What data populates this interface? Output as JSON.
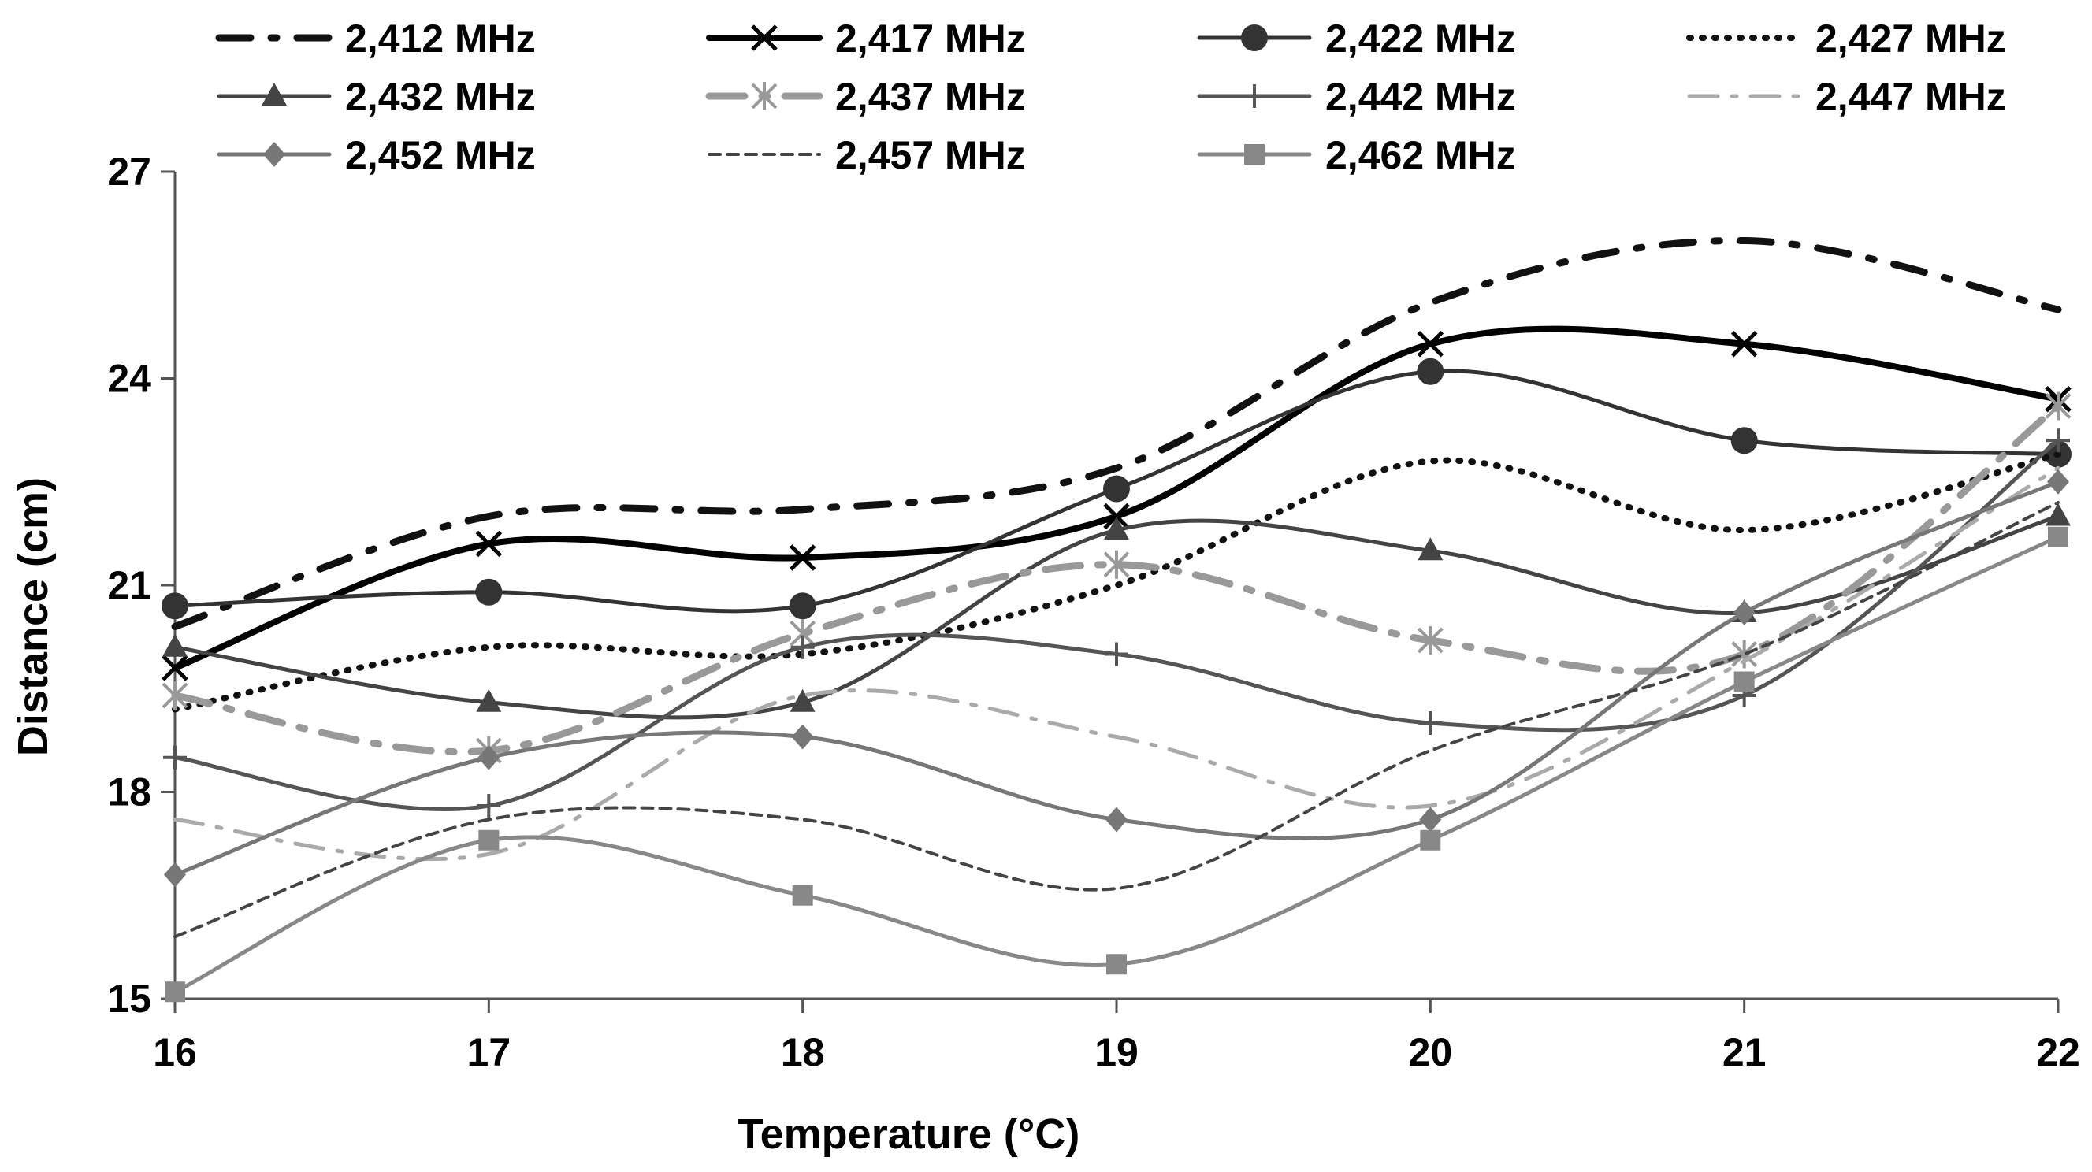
{
  "chart_data": {
    "type": "line",
    "title": "",
    "xlabel": "Temperature (°C)",
    "ylabel": "Distance (cm)",
    "x": [
      16,
      17,
      18,
      19,
      20,
      21,
      22
    ],
    "xlim": [
      16,
      22
    ],
    "ylim": [
      15,
      27
    ],
    "yticks": [
      15,
      18,
      21,
      24,
      27
    ],
    "grid": false,
    "legend_position": "top",
    "series": [
      {
        "name": "2,412 MHz",
        "values": [
          20.4,
          22.0,
          22.1,
          22.7,
          25.1,
          26.0,
          25.0
        ],
        "color": "#111111",
        "dash": "40 26 7 26",
        "width": 9,
        "marker": "none"
      },
      {
        "name": "2,417 MHz",
        "values": [
          19.8,
          21.6,
          21.4,
          22.0,
          24.5,
          24.5,
          23.7
        ],
        "color": "#000000",
        "dash": "",
        "width": 8,
        "marker": "x"
      },
      {
        "name": "2,422 MHz",
        "values": [
          20.7,
          20.9,
          20.7,
          22.4,
          24.1,
          23.1,
          22.9
        ],
        "color": "#333333",
        "dash": "",
        "width": 5,
        "marker": "circle"
      },
      {
        "name": "2,427 MHz",
        "values": [
          19.2,
          20.1,
          20.0,
          21.0,
          22.8,
          21.8,
          22.9
        ],
        "color": "#111111",
        "dash": "2 14",
        "width": 8,
        "marker": "none"
      },
      {
        "name": "2,432 MHz",
        "values": [
          20.1,
          19.3,
          19.3,
          21.8,
          21.5,
          20.6,
          22.0
        ],
        "color": "#444444",
        "dash": "",
        "width": 5,
        "marker": "triangle"
      },
      {
        "name": "2,437 MHz",
        "values": [
          19.4,
          18.6,
          20.3,
          21.3,
          20.2,
          20.0,
          23.6
        ],
        "color": "#999999",
        "dash": "45 22 7 22",
        "width": 9,
        "marker": "asterisk"
      },
      {
        "name": "2,442 MHz",
        "values": [
          18.5,
          17.8,
          20.1,
          20.0,
          19.0,
          19.4,
          23.1
        ],
        "color": "#555555",
        "dash": "",
        "width": 5,
        "marker": "plus"
      },
      {
        "name": "2,447 MHz",
        "values": [
          17.6,
          17.1,
          19.4,
          18.8,
          17.8,
          19.9,
          22.7
        ],
        "color": "#aaaaaa",
        "dash": "36 18 6 18",
        "width": 5,
        "marker": "none"
      },
      {
        "name": "2,452 MHz",
        "values": [
          16.8,
          18.5,
          18.8,
          17.6,
          17.6,
          20.6,
          22.5
        ],
        "color": "#777777",
        "dash": "",
        "width": 5,
        "marker": "diamond"
      },
      {
        "name": "2,457 MHz",
        "values": [
          15.9,
          17.6,
          17.6,
          16.6,
          18.6,
          20.0,
          22.2
        ],
        "color": "#444444",
        "dash": "14 9",
        "width": 4,
        "marker": "none"
      },
      {
        "name": "2,462 MHz",
        "values": [
          15.1,
          17.3,
          16.5,
          15.5,
          17.3,
          19.6,
          21.7
        ],
        "color": "#888888",
        "dash": "",
        "width": 5,
        "marker": "square"
      }
    ]
  }
}
